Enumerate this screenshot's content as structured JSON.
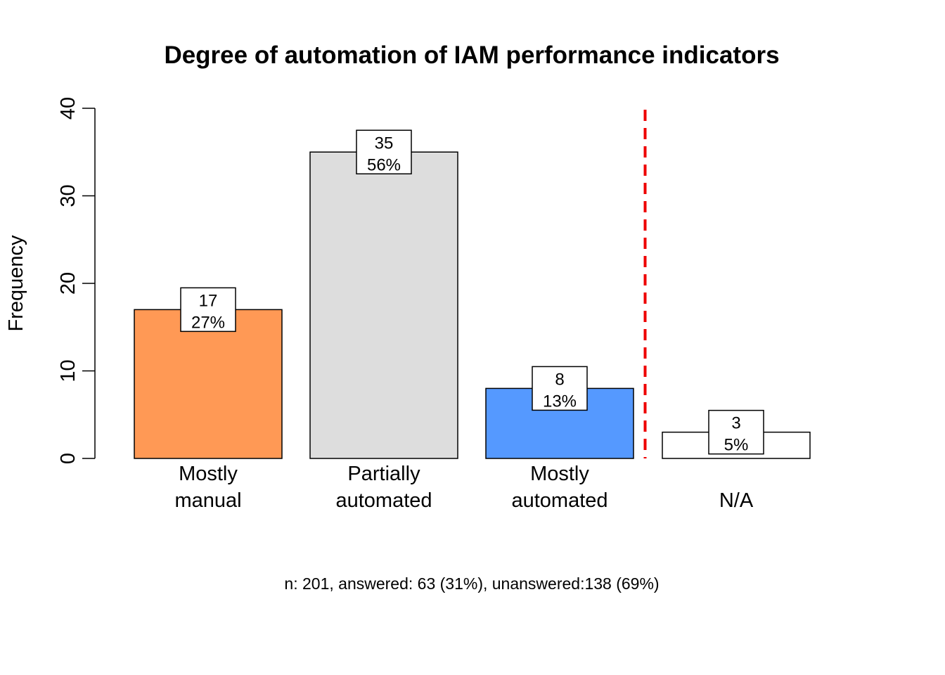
{
  "chart_data": {
    "type": "bar",
    "title": "Degree of automation of IAM performance indicators",
    "xlabel": "",
    "ylabel": "Frequency",
    "ylim": [
      0,
      40
    ],
    "yticks": [
      0,
      10,
      20,
      30,
      40
    ],
    "categories": [
      [
        "Mostly",
        "manual"
      ],
      [
        "Partially",
        "automated"
      ],
      [
        "Mostly",
        "automated"
      ],
      [
        "N/A"
      ]
    ],
    "values": [
      17,
      35,
      8,
      3
    ],
    "percent_labels": [
      "27%",
      "56%",
      "13%",
      "5%"
    ],
    "colors": [
      "#FF9955",
      "#DDDDDD",
      "#5599FF",
      "#FFFFFF"
    ],
    "separator": {
      "between_categories": [
        2,
        3
      ],
      "color": "#EE0000",
      "style": "dashed"
    },
    "grid": false,
    "footnote": "n: 201, answered: 63 (31%), unanswered:138 (69%)"
  }
}
